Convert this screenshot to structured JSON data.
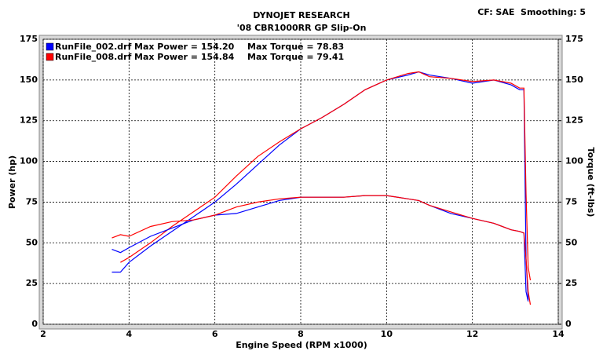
{
  "chart_data": {
    "type": "line",
    "title": "DYNOJET RESEARCH",
    "subtitle": "'08 CBR1000RR GP Slip-On",
    "annotation": "CF: SAE  Smoothing: 5",
    "x_label": "Engine Speed (RPM x1000)",
    "y_label": "Power (hp)",
    "y2_label": "Torque (ft-lbs)",
    "x": [
      3.6,
      3.8,
      4.0,
      4.5,
      5,
      5.5,
      6,
      6.5,
      7,
      7.5,
      8,
      8.5,
      9,
      9.5,
      10,
      10.5,
      10.75,
      11,
      11.5,
      12,
      12.5,
      12.9,
      13.1,
      13.2,
      13.25,
      13.3,
      13.35
    ],
    "series": [
      {
        "name": "RunFile_002.drf",
        "legend": "Max Power = 154.20",
        "color": "#0000ff",
        "values": [
          32,
          32,
          38,
          48,
          57,
          66,
          75,
          86,
          98,
          110,
          120,
          127,
          135,
          144,
          150,
          153,
          155,
          153,
          151,
          148,
          150,
          147,
          144,
          144,
          40,
          15,
          null
        ]
      },
      {
        "name": "RunFile_008.drf",
        "legend": "Max Power = 154.84",
        "color": "#ff0000",
        "values": [
          null,
          38,
          41,
          50,
          60,
          69,
          78,
          91,
          103,
          112,
          120,
          127,
          135,
          144,
          150,
          154,
          155,
          152,
          151,
          149,
          150,
          148,
          145,
          145,
          80,
          35,
          27
        ]
      },
      {
        "legend": "Max Torque = 78.83",
        "color": "#0000ff",
        "axis": "y2",
        "values": [
          46,
          44,
          47,
          54,
          59,
          64,
          67,
          68,
          72,
          76,
          78,
          78,
          78,
          79,
          79,
          77,
          76,
          73,
          68,
          65,
          62,
          58,
          57,
          56,
          20,
          14,
          null
        ]
      },
      {
        "legend": "Max Torque = 79.41",
        "color": "#ff0000",
        "axis": "y2",
        "values": [
          53,
          55,
          54,
          60,
          63,
          64,
          67,
          72,
          75,
          77,
          78,
          78,
          78,
          79,
          79,
          77,
          76,
          73,
          69,
          65,
          62,
          58,
          57,
          56,
          40,
          20,
          12
        ]
      }
    ],
    "xlim": [
      2,
      14
    ],
    "xticks": [
      2,
      4,
      6,
      8,
      10,
      12,
      14
    ],
    "ylim": [
      0,
      175
    ],
    "yticks": [
      0,
      25,
      50,
      75,
      100,
      125,
      150,
      175
    ],
    "y2lim": [
      0,
      175
    ],
    "y2ticks": [
      0,
      25,
      50,
      75,
      100,
      125,
      150,
      175
    ],
    "grid": true
  }
}
